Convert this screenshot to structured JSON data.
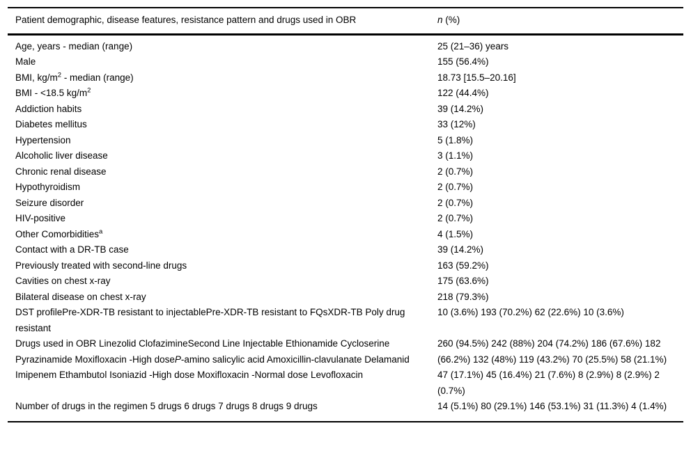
{
  "table": {
    "header": {
      "label": "Patient demographic, disease features, resistance pattern and drugs used in OBR",
      "value_parts": [
        {
          "text": "n",
          "style": "italic"
        },
        {
          "text": " (%)",
          "style": "normal"
        }
      ]
    },
    "rows": [
      {
        "label_parts": [
          {
            "text": "Age, years - median (range)",
            "style": "normal"
          }
        ],
        "value": "25 (21–36) years"
      },
      {
        "label_parts": [
          {
            "text": "Male",
            "style": "normal"
          }
        ],
        "value": "155 (56.4%)"
      },
      {
        "label_parts": [
          {
            "text": "BMI, kg/m",
            "style": "normal"
          },
          {
            "text": "2",
            "style": "sup"
          },
          {
            "text": " - median (range)",
            "style": "normal"
          }
        ],
        "value": "18.73 [15.5–20.16]"
      },
      {
        "label_parts": [
          {
            "text": "BMI - <18.5 kg/m",
            "style": "normal"
          },
          {
            "text": "2",
            "style": "sup"
          }
        ],
        "value": "122 (44.4%)"
      },
      {
        "label_parts": [
          {
            "text": "Addiction habits",
            "style": "normal"
          }
        ],
        "value": "39 (14.2%)"
      },
      {
        "label_parts": [
          {
            "text": "Diabetes mellitus",
            "style": "normal"
          }
        ],
        "value": "33 (12%)"
      },
      {
        "label_parts": [
          {
            "text": "Hypertension",
            "style": "normal"
          }
        ],
        "value": "5 (1.8%)"
      },
      {
        "label_parts": [
          {
            "text": "Alcoholic liver disease",
            "style": "normal"
          }
        ],
        "value": "3 (1.1%)"
      },
      {
        "label_parts": [
          {
            "text": "Chronic renal disease",
            "style": "normal"
          }
        ],
        "value": "2 (0.7%)"
      },
      {
        "label_parts": [
          {
            "text": "Hypothyroidism",
            "style": "normal"
          }
        ],
        "value": "2 (0.7%)"
      },
      {
        "label_parts": [
          {
            "text": "Seizure disorder",
            "style": "normal"
          }
        ],
        "value": "2 (0.7%)"
      },
      {
        "label_parts": [
          {
            "text": "HIV-positive",
            "style": "normal"
          }
        ],
        "value": "2 (0.7%)"
      },
      {
        "label_parts": [
          {
            "text": "Other Comorbidities",
            "style": "normal"
          },
          {
            "text": "a",
            "style": "sup"
          }
        ],
        "value": "4 (1.5%)"
      },
      {
        "label_parts": [
          {
            "text": "Contact with a DR-TB case",
            "style": "normal"
          }
        ],
        "value": "39 (14.2%)"
      },
      {
        "label_parts": [
          {
            "text": "Previously treated with second-line drugs",
            "style": "normal"
          }
        ],
        "value": "163 (59.2%)"
      },
      {
        "label_parts": [
          {
            "text": "Cavities on chest x-ray",
            "style": "normal"
          }
        ],
        "value": "175 (63.6%)"
      },
      {
        "label_parts": [
          {
            "text": "Bilateral disease on chest x-ray",
            "style": "normal"
          }
        ],
        "value": "218 (79.3%)"
      },
      {
        "label_parts": [
          {
            "text": "DST profilePre-XDR-TB resistant to injectablePre-XDR-TB resistant to FQsXDR-TB Poly drug resistant",
            "style": "normal"
          }
        ],
        "value": "10 (3.6%) 193 (70.2%) 62 (22.6%) 10 (3.6%)"
      },
      {
        "label_parts": [
          {
            "text": "Drugs used in OBR Linezolid ClofazimineSecond Line Injectable Ethionamide Cycloserine Pyrazinamide Moxifloxacin -High dose",
            "style": "normal"
          },
          {
            "text": "P",
            "style": "italic"
          },
          {
            "text": "-amino salicylic acid Amoxicillin-clavulanate Delamanid Imipenem Ethambutol Isoniazid -High dose Moxifloxacin -Normal dose Levofloxacin",
            "style": "normal"
          }
        ],
        "value": "260 (94.5%) 242 (88%) 204 (74.2%) 186 (67.6%) 182 (66.2%) 132 (48%) 119 (43.2%) 70 (25.5%) 58 (21.1%) 47 (17.1%) 45 (16.4%) 21 (7.6%) 8 (2.9%) 8 (2.9%) 2 (0.7%)"
      },
      {
        "label_parts": [
          {
            "text": "Number of drugs in the regimen 5 drugs 6 drugs 7 drugs 8 drugs 9 drugs",
            "style": "normal"
          }
        ],
        "value": "14 (5.1%) 80 (29.1%) 146 (53.1%) 31 (11.3%) 4 (1.4%)"
      }
    ]
  }
}
